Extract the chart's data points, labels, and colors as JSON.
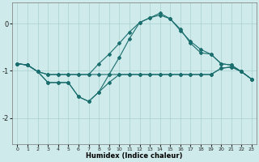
{
  "xlabel": "Humidex (Indice chaleur)",
  "bg_color": "#ceeaea",
  "grid_color": "#aacfcf",
  "line_color": "#1a6e6e",
  "xlim": [
    -0.5,
    23.5
  ],
  "ylim": [
    -2.55,
    0.45
  ],
  "yticks": [
    0,
    -1,
    -2
  ],
  "xticks": [
    0,
    1,
    2,
    3,
    4,
    5,
    6,
    7,
    8,
    9,
    10,
    11,
    12,
    13,
    14,
    15,
    16,
    17,
    18,
    19,
    20,
    21,
    22,
    23
  ],
  "line1_x": [
    0,
    1,
    2,
    3,
    4,
    5,
    6,
    7,
    8,
    9,
    10,
    11,
    12,
    13,
    14,
    15,
    16,
    17,
    18,
    19,
    20,
    21,
    22,
    23
  ],
  "line1_y": [
    -0.85,
    -0.88,
    -1.02,
    -1.08,
    -1.08,
    -1.08,
    -1.08,
    -1.08,
    -1.08,
    -1.08,
    -1.08,
    -1.08,
    -1.08,
    -1.08,
    -1.08,
    -1.08,
    -1.08,
    -1.08,
    -1.08,
    -1.08,
    -0.95,
    -0.92,
    -1.02,
    -1.18
  ],
  "line2_x": [
    0,
    1,
    2,
    3,
    4,
    5,
    6,
    7,
    8,
    9,
    10,
    11,
    12,
    13,
    14,
    15,
    16,
    17,
    18,
    19,
    20,
    21,
    22,
    23
  ],
  "line2_y": [
    -0.85,
    -0.88,
    -1.02,
    -1.25,
    -1.25,
    -1.25,
    -1.55,
    -1.65,
    -1.45,
    -1.25,
    -1.08,
    -1.08,
    -1.08,
    -1.08,
    -1.08,
    -1.08,
    -1.08,
    -1.08,
    -1.08,
    -1.08,
    -0.95,
    -0.92,
    -1.02,
    -1.18
  ],
  "line3_x": [
    0,
    1,
    2,
    3,
    4,
    5,
    6,
    7,
    8,
    9,
    10,
    11,
    12,
    13,
    14,
    15,
    16,
    17,
    18,
    19,
    20,
    21,
    22,
    23
  ],
  "line3_y": [
    -0.85,
    -0.88,
    -1.02,
    -1.08,
    -1.08,
    -1.08,
    -1.08,
    -1.08,
    -0.85,
    -0.65,
    -0.42,
    -0.18,
    0.02,
    0.12,
    0.18,
    0.1,
    -0.12,
    -0.42,
    -0.62,
    -0.65,
    -0.85,
    -0.88,
    -1.02,
    -1.18
  ],
  "line4_x": [
    0,
    1,
    2,
    3,
    4,
    5,
    6,
    7,
    8,
    9,
    10,
    11,
    12,
    13,
    14,
    15,
    16,
    17,
    18,
    19,
    20,
    21,
    22,
    23
  ],
  "line4_y": [
    -0.85,
    -0.88,
    -1.02,
    -1.25,
    -1.25,
    -1.25,
    -1.55,
    -1.65,
    -1.45,
    -1.08,
    -0.72,
    -0.32,
    0.02,
    0.12,
    0.22,
    0.1,
    -0.15,
    -0.38,
    -0.55,
    -0.65,
    -0.85,
    -0.88,
    -1.02,
    -1.18
  ]
}
